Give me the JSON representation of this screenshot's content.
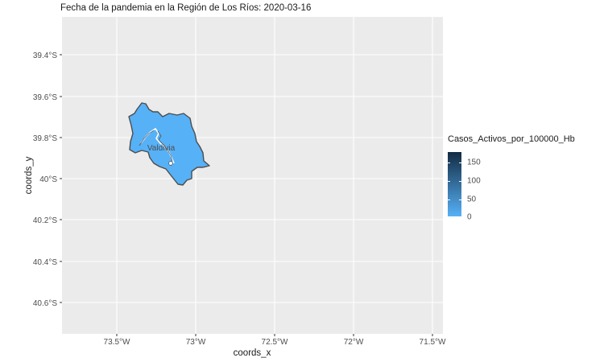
{
  "title": "Fecha de la pandemia en la Región de Los Ríos: 2020-03-16",
  "x_axis": {
    "title": "coords_x",
    "ticks": [
      "73.5°W",
      "73°W",
      "72.5°W",
      "72°W",
      "71.5°W"
    ]
  },
  "y_axis": {
    "title": "coords_y",
    "ticks": [
      "39.4°S",
      "39.6°S",
      "39.8°S",
      "40°S",
      "40.2°S",
      "40.4°S",
      "40.6°S"
    ]
  },
  "map_label": "Valdivia",
  "legend": {
    "title": "Casos_Activos_por_100000_Hb",
    "ticks": [
      "150",
      "100",
      "50",
      "0"
    ],
    "color_low": "#56b1f7",
    "color_high": "#132b43"
  },
  "colors": {
    "panel_background": "#ebebeb",
    "gridline": "#ffffff",
    "region_fill": "#56b1f7",
    "region_border": "#4d4d4d"
  },
  "chart_data": {
    "type": "choropleth",
    "title": "Fecha de la pandemia en la Región de Los Ríos: 2020-03-16",
    "xlabel": "coords_x",
    "ylabel": "coords_y",
    "xlim": [
      -73.82,
      -71.48
    ],
    "ylim": [
      -40.75,
      -39.22
    ],
    "grid": true,
    "legend_position": "right",
    "regions": [
      {
        "name": "Valdivia",
        "value": 0,
        "fill": "#56b1f7"
      }
    ]
  }
}
